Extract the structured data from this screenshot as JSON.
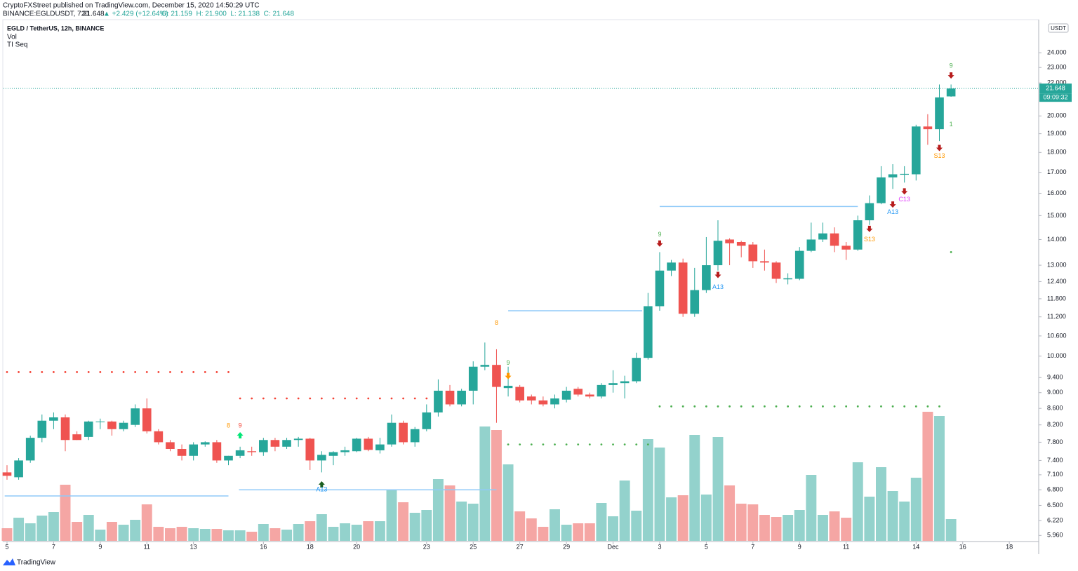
{
  "publisher": "CryptoFXStreet published on TradingView.com, December 15, 2020 14:50:29 UTC",
  "symbol": "BINANCE:EGLDUSDT, 720",
  "last": "21.648",
  "change": "▲ +2.429 (+12.64%)",
  "ohlc": "O: 21.159  H: 21.900  L: 21.138  C: 21.648",
  "footer": "TradingView",
  "chart_data": {
    "type": "candlestick",
    "title": "EGLD / TetherUS, 12h, BINANCE",
    "indicators": [
      "Vol",
      "TI Seq"
    ],
    "currency": "USDT",
    "log_scale": true,
    "up_color": "#26a69a",
    "down_color": "#ef5350",
    "volume_up_color": "#93d2cc",
    "volume_down_color": "#f5a6a4",
    "categories": [
      null,
      null,
      null,
      null,
      null,
      null,
      null,
      null,
      null,
      null,
      null,
      null,
      null,
      null,
      null,
      null,
      null,
      null,
      null,
      null,
      null,
      null,
      null,
      null,
      null,
      null,
      null,
      null,
      null,
      null,
      null,
      null,
      null,
      null,
      null,
      null,
      null,
      null,
      null,
      null,
      null,
      null,
      null,
      null,
      null,
      null,
      null,
      null,
      null,
      null,
      null,
      null,
      null,
      null,
      null,
      null,
      null,
      null,
      null,
      null,
      null,
      null,
      null,
      null,
      null,
      null,
      null,
      null,
      null,
      null,
      null,
      null,
      null,
      null,
      null,
      null,
      null,
      null,
      null,
      null,
      null,
      null
    ],
    "open": [
      7.15,
      7.05,
      7.4,
      7.9,
      8.3,
      8.38,
      7.98,
      7.92,
      8.27,
      8.28,
      8.1,
      8.2,
      8.6,
      8.05,
      7.8,
      7.65,
      7.5,
      7.75,
      7.8,
      7.4,
      7.5,
      7.6,
      7.58,
      7.85,
      7.7,
      7.85,
      7.88,
      7.4,
      7.5,
      7.58,
      7.6,
      7.88,
      7.62,
      7.75,
      8.25,
      7.8,
      8.1,
      8.5,
      9.05,
      8.7,
      9.05,
      9.7,
      9.75,
      9.12,
      9.15,
      8.9,
      8.8,
      8.7,
      8.82,
      9.1,
      8.95,
      8.9,
      9.2,
      9.25,
      9.3,
      9.95,
      11.55,
      12.8,
      13.1,
      11.3,
      12.1,
      13.0,
      14.0,
      13.9,
      13.8,
      13.15,
      13.1,
      12.48,
      12.5,
      13.55,
      14.0,
      14.25,
      13.75,
      13.6,
      14.8,
      15.55,
      16.75,
      16.88,
      16.9,
      19.4,
      19.25,
      21.159
    ],
    "high": [
      7.3,
      7.45,
      7.95,
      8.45,
      8.5,
      8.45,
      8.05,
      8.3,
      8.35,
      8.3,
      8.3,
      8.7,
      8.85,
      8.1,
      7.85,
      7.75,
      7.8,
      7.82,
      7.85,
      7.5,
      7.7,
      7.7,
      7.9,
      7.9,
      7.9,
      7.92,
      7.9,
      7.6,
      7.6,
      7.7,
      7.9,
      7.92,
      7.9,
      8.45,
      8.3,
      8.15,
      8.7,
      9.35,
      9.2,
      9.1,
      9.85,
      10.4,
      10.2,
      9.7,
      9.2,
      8.95,
      8.9,
      8.95,
      9.15,
      9.15,
      9.0,
      9.25,
      9.6,
      9.45,
      10.1,
      12.0,
      13.5,
      13.2,
      13.25,
      12.9,
      14.1,
      14.8,
      14.05,
      13.95,
      13.9,
      13.6,
      13.15,
      12.7,
      13.7,
      14.7,
      14.7,
      14.5,
      13.9,
      15.0,
      15.9,
      17.3,
      17.4,
      17.3,
      19.5,
      20.1,
      21.9,
      21.9
    ],
    "low": [
      7.0,
      7.0,
      7.35,
      7.8,
      8.1,
      7.6,
      7.85,
      7.85,
      8.1,
      7.95,
      8.05,
      8.15,
      8.0,
      7.75,
      7.6,
      7.4,
      7.4,
      7.7,
      7.35,
      7.3,
      7.45,
      7.5,
      7.5,
      7.6,
      7.65,
      7.7,
      7.2,
      7.15,
      7.3,
      7.5,
      7.58,
      7.6,
      7.55,
      7.7,
      7.75,
      7.7,
      8.05,
      8.4,
      8.65,
      8.65,
      8.7,
      9.6,
      8.25,
      8.9,
      8.75,
      8.7,
      8.65,
      8.6,
      8.75,
      8.9,
      8.85,
      8.85,
      9.0,
      8.85,
      9.25,
      9.9,
      11.4,
      12.6,
      11.2,
      11.2,
      12.0,
      12.8,
      13.0,
      13.3,
      12.9,
      12.8,
      12.35,
      12.3,
      12.45,
      13.5,
      13.9,
      13.5,
      13.2,
      13.55,
      14.6,
      15.5,
      16.2,
      16.5,
      16.6,
      18.4,
      18.6,
      21.138
    ],
    "close": [
      7.08,
      7.4,
      7.9,
      8.3,
      8.38,
      7.85,
      7.85,
      8.28,
      8.28,
      8.1,
      8.25,
      8.6,
      8.05,
      7.8,
      7.65,
      7.5,
      7.75,
      7.8,
      7.4,
      7.5,
      7.62,
      7.58,
      7.85,
      7.7,
      7.85,
      7.88,
      7.4,
      7.52,
      7.58,
      7.62,
      7.88,
      7.63,
      7.75,
      8.25,
      7.8,
      8.1,
      8.5,
      9.05,
      8.7,
      9.05,
      9.7,
      9.75,
      9.15,
      9.18,
      8.8,
      8.8,
      8.7,
      8.85,
      9.05,
      8.95,
      8.9,
      9.2,
      9.25,
      9.3,
      9.95,
      11.55,
      12.8,
      13.1,
      11.3,
      12.1,
      13.0,
      13.95,
      13.85,
      13.75,
      13.15,
      13.1,
      12.5,
      12.52,
      13.55,
      14.0,
      14.25,
      13.75,
      13.6,
      14.8,
      15.55,
      16.75,
      16.9,
      16.92,
      19.4,
      19.25,
      21.1,
      21.648
    ],
    "volume": [
      18,
      33,
      25,
      36,
      41,
      80,
      27,
      37,
      16,
      27,
      23,
      30,
      52,
      20,
      18,
      20,
      18,
      17,
      17,
      15,
      15,
      13,
      24,
      18,
      16,
      24,
      28,
      38,
      20,
      25,
      23,
      28,
      28,
      72,
      55,
      40,
      44,
      88,
      79,
      56,
      53,
      163,
      158,
      109,
      42,
      32,
      20,
      45,
      23,
      25,
      25,
      54,
      35,
      86,
      43,
      145,
      133,
      62,
      65,
      151,
      66,
      148,
      79,
      53,
      52,
      37,
      34,
      37,
      44,
      94,
      37,
      42,
      33,
      112,
      63,
      105,
      71,
      56,
      90,
      184,
      178,
      31
    ],
    "xlim": [
      -0.3,
      88.4
    ],
    "xticks": [
      {
        "value": 0,
        "label": "5"
      },
      {
        "value": 4,
        "label": "7"
      },
      {
        "value": 8,
        "label": "9"
      },
      {
        "value": 12,
        "label": "11"
      },
      {
        "value": 16,
        "label": "13"
      },
      {
        "value": 22,
        "label": "16"
      },
      {
        "value": 26,
        "label": "18"
      },
      {
        "value": 30,
        "label": "20"
      },
      {
        "value": 36,
        "label": "23"
      },
      {
        "value": 40,
        "label": "25"
      },
      {
        "value": 44,
        "label": "27"
      },
      {
        "value": 48,
        "label": "29"
      },
      {
        "value": 52,
        "label": "Dec"
      },
      {
        "value": 56,
        "label": "3"
      },
      {
        "value": 60,
        "label": "5"
      },
      {
        "value": 64,
        "label": "7"
      },
      {
        "value": 68,
        "label": "9"
      },
      {
        "value": 72,
        "label": "11"
      },
      {
        "value": 78,
        "label": "14"
      },
      {
        "value": 82,
        "label": "16"
      },
      {
        "value": 86,
        "label": "18"
      }
    ],
    "ylim": [
      5.88,
      26.3
    ],
    "yticks": [
      {
        "value": 24,
        "label": "24.000"
      },
      {
        "value": 23,
        "label": "23.000"
      },
      {
        "value": 22,
        "label": "22.000"
      },
      {
        "value": 20,
        "label": "20.000"
      },
      {
        "value": 19,
        "label": "19.000"
      },
      {
        "value": 18,
        "label": "18.000"
      },
      {
        "value": 17,
        "label": "17.000"
      },
      {
        "value": 16,
        "label": "16.000"
      },
      {
        "value": 15,
        "label": "15.000"
      },
      {
        "value": 14,
        "label": "14.000"
      },
      {
        "value": 13,
        "label": "13.000"
      },
      {
        "value": 12.4,
        "label": "12.400"
      },
      {
        "value": 11.8,
        "label": "11.800"
      },
      {
        "value": 11.2,
        "label": "11.200"
      },
      {
        "value": 10.6,
        "label": "10.600"
      },
      {
        "value": 10,
        "label": "10.000"
      },
      {
        "value": 9.4,
        "label": "9.400"
      },
      {
        "value": 9,
        "label": "9.000"
      },
      {
        "value": 8.6,
        "label": "8.600"
      },
      {
        "value": 8.2,
        "label": "8.200"
      },
      {
        "value": 7.8,
        "label": "7.800"
      },
      {
        "value": 7.4,
        "label": "7.400"
      },
      {
        "value": 7.1,
        "label": "7.100"
      },
      {
        "value": 6.8,
        "label": "6.800"
      },
      {
        "value": 6.5,
        "label": "6.500"
      },
      {
        "value": 6.22,
        "label": "6.220"
      },
      {
        "value": 5.96,
        "label": "5.960"
      }
    ],
    "current_price": {
      "value": 21.648,
      "label": "21.648",
      "countdown": "09:09:32"
    },
    "levels": [
      {
        "price": 6.68,
        "from": -0.2,
        "to": 19,
        "color": "#90caf9",
        "style": "solid"
      },
      {
        "price": 6.8,
        "from": 19.9,
        "to": 42,
        "color": "#90caf9",
        "style": "solid"
      },
      {
        "price": 11.4,
        "from": 43,
        "to": 54.5,
        "color": "#90caf9",
        "style": "solid"
      },
      {
        "price": 15.4,
        "from": 56,
        "to": 73,
        "color": "#90caf9",
        "style": "solid"
      },
      {
        "price": 9.55,
        "from": 0,
        "to": 19,
        "color": "#f44336",
        "style": "dotted"
      },
      {
        "price": 8.85,
        "from": 20,
        "to": 36,
        "color": "#f44336",
        "style": "dotted"
      },
      {
        "price": 7.75,
        "from": 43,
        "to": 55,
        "color": "#4caf50",
        "style": "dotted"
      },
      {
        "price": 8.65,
        "from": 56,
        "to": 80,
        "color": "#4caf50",
        "style": "dotted"
      },
      {
        "price": 13.5,
        "from": 81,
        "to": 81,
        "color": "#4caf50",
        "style": "dotted"
      }
    ],
    "annotations": [
      {
        "text": "8",
        "x": 19,
        "y": 8.18,
        "color": "#ff9800"
      },
      {
        "text": "9",
        "x": 20,
        "y": 8.18,
        "color": "#f44336"
      },
      {
        "text": "A13",
        "x": 27,
        "y": 6.8,
        "color": "#2196f3"
      },
      {
        "text": "8",
        "x": 42,
        "y": 11.0,
        "color": "#ff9800"
      },
      {
        "text": "9",
        "x": 43,
        "y": 9.8,
        "color": "#4caf50"
      },
      {
        "text": "9",
        "x": 56,
        "y": 14.2,
        "color": "#4caf50"
      },
      {
        "text": "A13",
        "x": 61,
        "y": 12.2,
        "color": "#2196f3"
      },
      {
        "text": "S13",
        "x": 74,
        "y": 14.0,
        "color": "#ff9800"
      },
      {
        "text": "A13",
        "x": 76,
        "y": 15.15,
        "color": "#2196f3"
      },
      {
        "text": "C13",
        "x": 77,
        "y": 15.7,
        "color": "#e040fb"
      },
      {
        "text": "S13",
        "x": 80,
        "y": 17.8,
        "color": "#ff9800"
      },
      {
        "text": "9",
        "x": 81,
        "y": 23.1,
        "color": "#4caf50"
      },
      {
        "text": "1",
        "x": 81,
        "y": 19.5,
        "color": "#4caf50"
      }
    ],
    "markers": [
      {
        "x": 20,
        "y": 7.95,
        "dir": "up",
        "color": "#00e676"
      },
      {
        "x": 27,
        "y": 6.9,
        "dir": "up",
        "color": "#1b5e20"
      },
      {
        "x": 43,
        "y": 9.45,
        "dir": "down",
        "color": "#ff9800"
      },
      {
        "x": 56,
        "y": 13.85,
        "dir": "down",
        "color": "#b71c1c"
      },
      {
        "x": 61,
        "y": 12.65,
        "dir": "down",
        "color": "#b71c1c"
      },
      {
        "x": 74,
        "y": 14.45,
        "dir": "down",
        "color": "#b71c1c"
      },
      {
        "x": 76,
        "y": 15.5,
        "dir": "down",
        "color": "#b71c1c"
      },
      {
        "x": 77,
        "y": 16.1,
        "dir": "down",
        "color": "#b71c1c"
      },
      {
        "x": 80,
        "y": 18.25,
        "dir": "down",
        "color": "#b71c1c"
      },
      {
        "x": 81,
        "y": 22.5,
        "dir": "down",
        "color": "#b71c1c"
      }
    ]
  }
}
